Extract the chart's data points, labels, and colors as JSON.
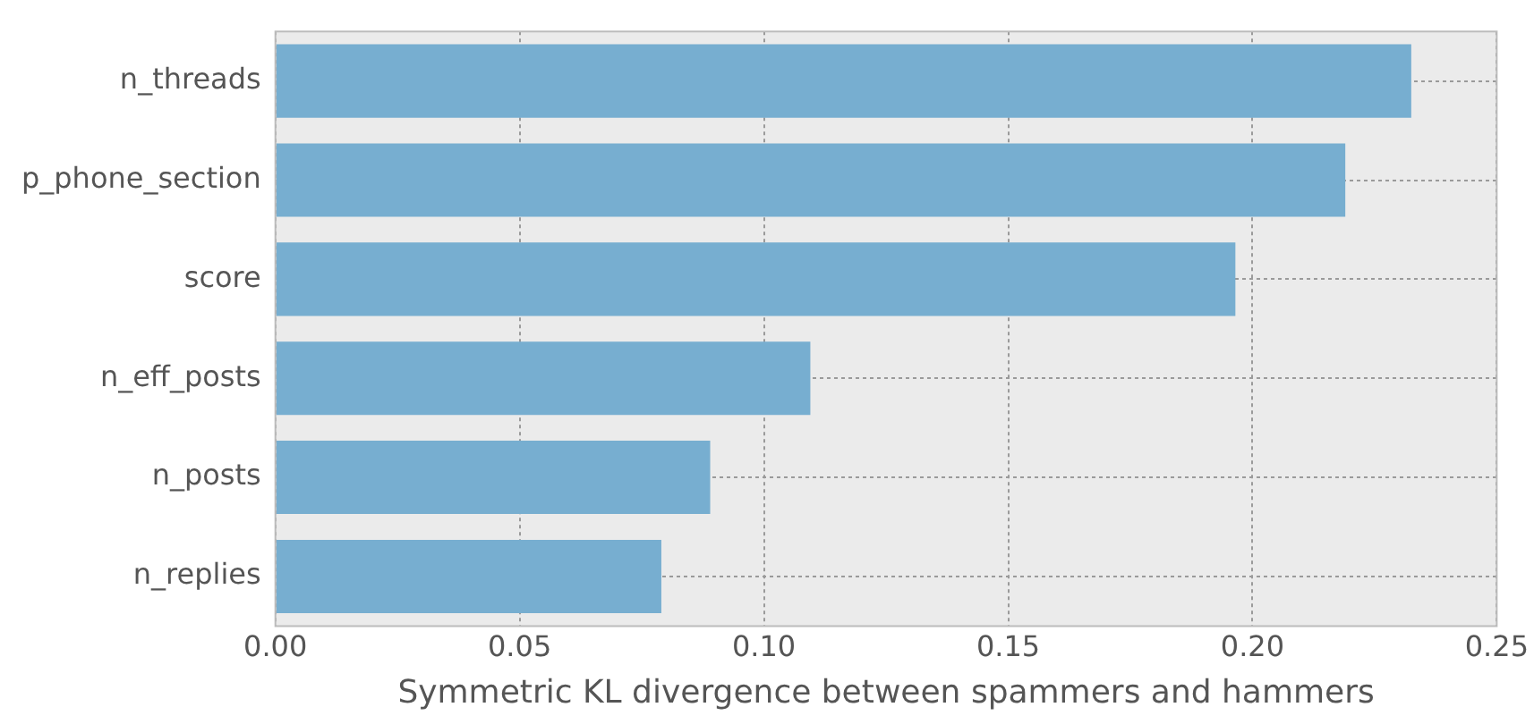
{
  "chart_data": {
    "type": "bar",
    "orientation": "horizontal",
    "xlabel": "Symmetric KL divergence between spammers and hammers",
    "categories": [
      "n_threads",
      "p_phone_section",
      "score",
      "n_eff_posts",
      "n_posts",
      "n_replies"
    ],
    "values": [
      0.2325,
      0.219,
      0.1965,
      0.1095,
      0.089,
      0.079
    ],
    "color": "#77aed0",
    "xlim": [
      0,
      0.25
    ],
    "xticks": [
      {
        "value": 0,
        "label": "0.00"
      },
      {
        "value": 0.05,
        "label": "0.05"
      },
      {
        "value": 0.1,
        "label": "0.10"
      },
      {
        "value": 0.15,
        "label": "0.15"
      },
      {
        "value": 0.2,
        "label": "0.20"
      },
      {
        "value": 0.25,
        "label": "0.25"
      }
    ],
    "grid": true
  }
}
